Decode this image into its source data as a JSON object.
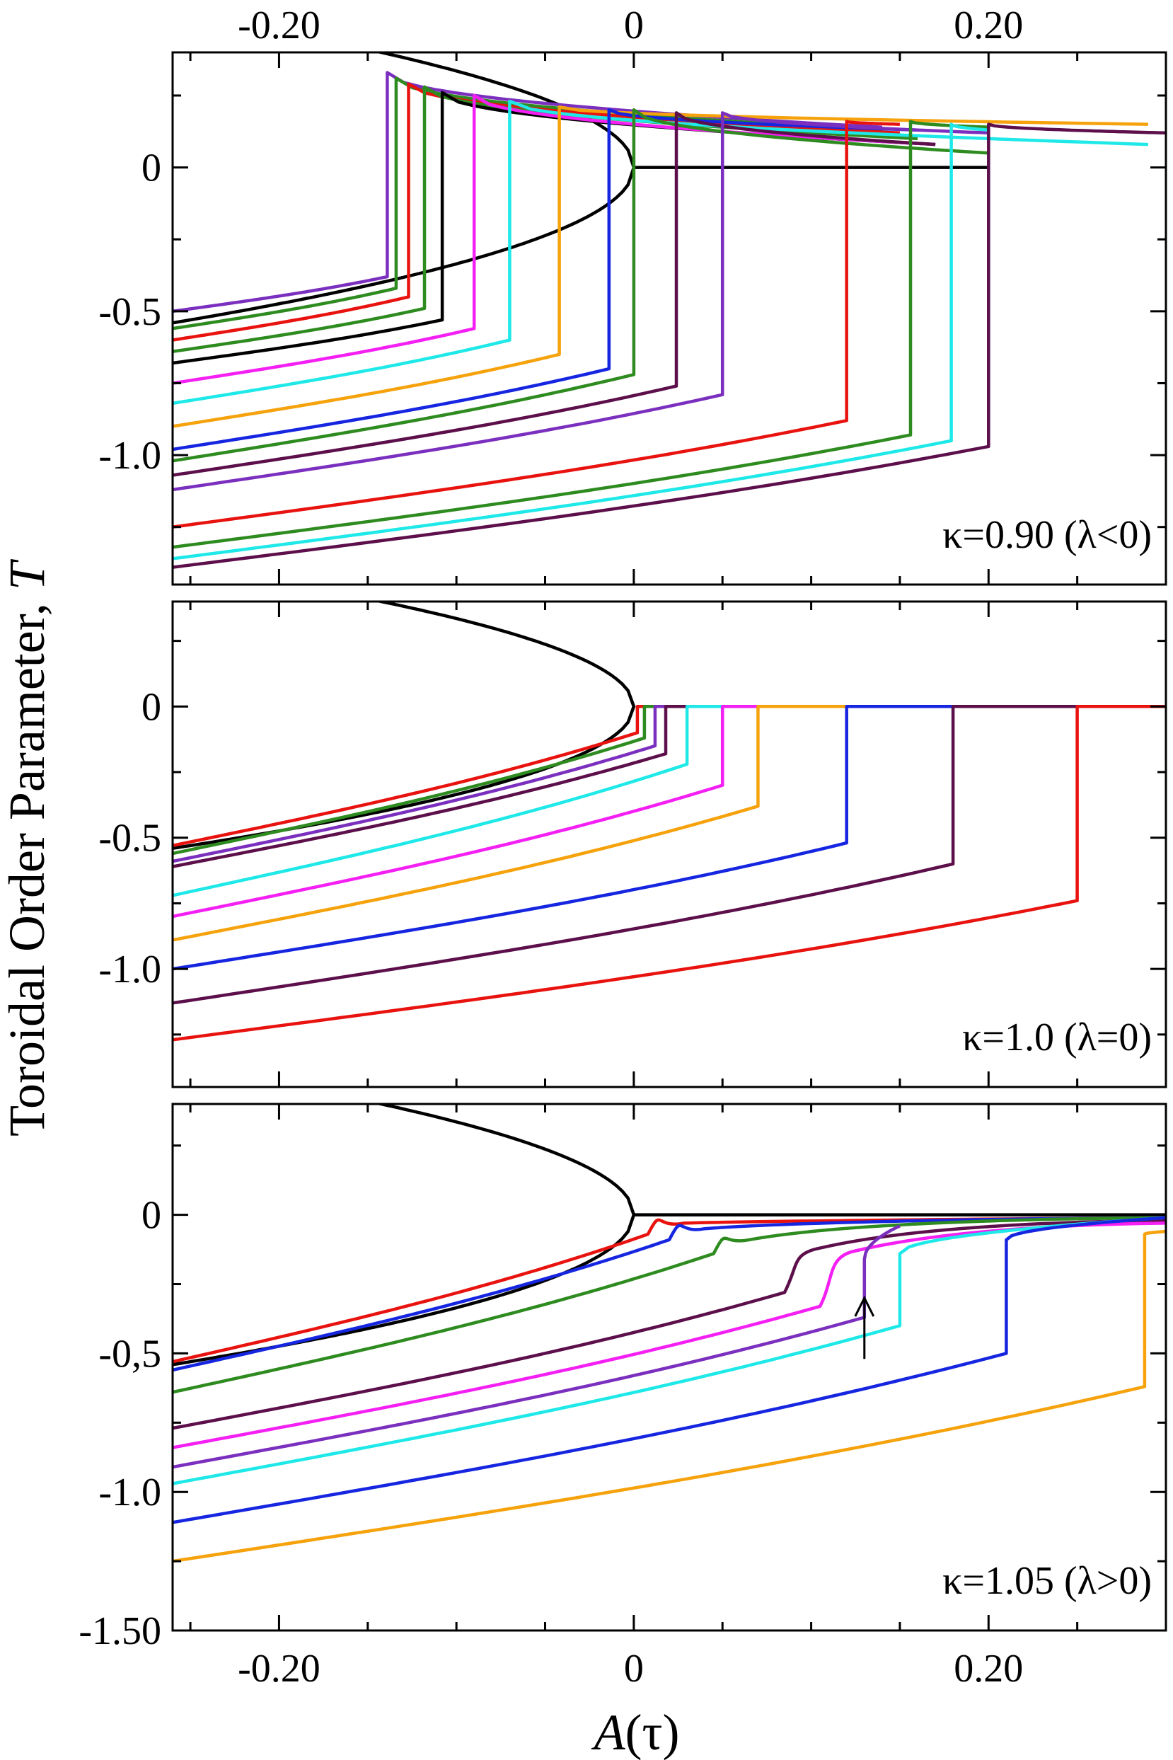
{
  "figure": {
    "ylabel_prefix": "Toroidal Order Parameter, ",
    "ylabel_var": "T",
    "xlabel_var": "A",
    "xlabel_arg": "(τ)",
    "top_x_ticks": [
      {
        "value": -0.2,
        "label": "-0.20"
      },
      {
        "value": 0,
        "label": "0"
      },
      {
        "value": 0.2,
        "label": "0.20"
      }
    ],
    "bottom_x_ticks": [
      {
        "value": -0.2,
        "label": "-0.20"
      },
      {
        "value": 0,
        "label": "0"
      },
      {
        "value": 0.2,
        "label": "0.20"
      }
    ]
  },
  "chart_data": [
    {
      "type": "line",
      "panel": "top",
      "label": "κ=0.90 (λ<0)",
      "xlim": [
        -0.26,
        0.3
      ],
      "ylim": [
        -1.45,
        0.4
      ],
      "y_ticks": [
        {
          "value": 0,
          "label": "0"
        },
        {
          "value": -0.5,
          "label": "-0.5"
        },
        {
          "value": -1.0,
          "label": "-1.0"
        }
      ],
      "reference_curve": {
        "color": "#000000",
        "apex": 0.0,
        "top_coef": 1.06,
        "bottom_coef": 1.06,
        "x_start": -0.26,
        "x_end": 0.2
      },
      "series": [
        {
          "color": "#7b2fbe",
          "xs": -0.139,
          "low_start": -0.5,
          "low_jump": -0.38,
          "high_jump": 0.33,
          "high_end": 0.14,
          "x_end": 0.14
        },
        {
          "color": "#2e8b1f",
          "xs": -0.134,
          "low_start": -0.56,
          "low_jump": -0.42,
          "high_jump": 0.31,
          "high_end": 0.13,
          "x_end": 0.14
        },
        {
          "color": "#e8130f",
          "xs": -0.127,
          "low_start": -0.6,
          "low_jump": -0.45,
          "high_jump": 0.29,
          "high_end": 0.12,
          "x_end": 0.15
        },
        {
          "color": "#2e8b1f",
          "xs": -0.118,
          "low_start": -0.64,
          "low_jump": -0.49,
          "high_jump": 0.28,
          "high_end": 0.1,
          "x_end": 0.16
        },
        {
          "color": "#000000",
          "xs": -0.108,
          "low_start": -0.68,
          "low_jump": -0.53,
          "high_jump": 0.26,
          "high_end": 0.08,
          "x_end": 0.17
        },
        {
          "color": "#f41ff3",
          "xs": -0.09,
          "low_start": -0.75,
          "low_jump": -0.56,
          "high_jump": 0.25,
          "high_end": 0.08,
          "x_end": 0.17
        },
        {
          "color": "#1fe8e8",
          "xs": -0.07,
          "low_start": -0.82,
          "low_jump": -0.6,
          "high_jump": 0.23,
          "high_end": 0.08,
          "x_end": 0.29
        },
        {
          "color": "#f5a20c",
          "xs": -0.042,
          "low_start": -0.9,
          "low_jump": -0.65,
          "high_jump": 0.21,
          "high_end": 0.15,
          "x_end": 0.29
        },
        {
          "color": "#1626e0",
          "xs": -0.014,
          "low_start": -0.98,
          "low_jump": -0.7,
          "high_jump": 0.2,
          "high_end": 0.13,
          "x_end": 0.16
        },
        {
          "color": "#2e8b1f",
          "xs": 0.0,
          "low_start": -1.02,
          "low_jump": -0.72,
          "high_jump": 0.2,
          "high_end": 0.05,
          "x_end": 0.2
        },
        {
          "color": "#5c0f4a",
          "xs": 0.024,
          "low_start": -1.07,
          "low_jump": -0.76,
          "high_jump": 0.19,
          "high_end": 0.08,
          "x_end": 0.17
        },
        {
          "color": "#7b2fbe",
          "xs": 0.05,
          "low_start": -1.12,
          "low_jump": -0.79,
          "high_jump": 0.19,
          "high_end": 0.12,
          "x_end": 0.2
        },
        {
          "color": "#e8130f",
          "xs": 0.12,
          "low_start": -1.25,
          "low_jump": -0.88,
          "high_jump": 0.16,
          "high_end": 0.15,
          "x_end": 0.15
        },
        {
          "color": "#2e8b1f",
          "xs": 0.156,
          "low_start": -1.32,
          "low_jump": -0.93,
          "high_jump": 0.16,
          "high_end": 0.14,
          "x_end": 0.2
        },
        {
          "color": "#1fe8e8",
          "xs": 0.179,
          "low_start": -1.36,
          "low_jump": -0.95,
          "high_jump": 0.15,
          "high_end": 0.13,
          "x_end": 0.2
        },
        {
          "color": "#5c0f4a",
          "xs": 0.2,
          "low_start": -1.39,
          "low_jump": -0.97,
          "high_jump": 0.15,
          "high_end": 0.12,
          "x_end": 0.3
        }
      ]
    },
    {
      "type": "line",
      "panel": "middle",
      "label": "κ=1.0 (λ=0)",
      "xlim": [
        -0.26,
        0.3
      ],
      "ylim": [
        -1.45,
        0.4
      ],
      "y_ticks": [
        {
          "value": 0,
          "label": "0"
        },
        {
          "value": -0.5,
          "label": "-0.5"
        },
        {
          "value": -1.0,
          "label": "-1.0"
        }
      ],
      "reference_curve": {
        "color": "#000000",
        "apex": 0.0,
        "top_coef": 1.06,
        "bottom_coef": 1.06,
        "x_start": -0.26,
        "x_end": 0.0
      },
      "series": [
        {
          "color": "#e8130f",
          "xs": 0.002,
          "low_start": -0.53,
          "low_jump": -0.1,
          "high_jump": 0.0,
          "high_end": 0.0,
          "x_end": 0.3
        },
        {
          "color": "#2e8b1f",
          "xs": 0.006,
          "low_start": -0.56,
          "low_jump": -0.12,
          "high_jump": 0.0,
          "high_end": 0.0,
          "x_end": 0.3
        },
        {
          "color": "#7b2fbe",
          "xs": 0.012,
          "low_start": -0.59,
          "low_jump": -0.15,
          "high_jump": 0.0,
          "high_end": 0.0,
          "x_end": 0.3
        },
        {
          "color": "#5c0f4a",
          "xs": 0.018,
          "low_start": -0.61,
          "low_jump": -0.18,
          "high_jump": 0.0,
          "high_end": 0.0,
          "x_end": 0.3
        },
        {
          "color": "#1fe8e8",
          "xs": 0.03,
          "low_start": -0.72,
          "low_jump": -0.22,
          "high_jump": 0.0,
          "high_end": 0.0,
          "x_end": 0.3
        },
        {
          "color": "#f41ff3",
          "xs": 0.05,
          "low_start": -0.8,
          "low_jump": -0.3,
          "high_jump": 0.0,
          "high_end": 0.0,
          "x_end": 0.3
        },
        {
          "color": "#f5a20c",
          "xs": 0.07,
          "low_start": -0.89,
          "low_jump": -0.38,
          "high_jump": 0.0,
          "high_end": 0.0,
          "x_end": 0.3
        },
        {
          "color": "#1626e0",
          "xs": 0.12,
          "low_start": -1.0,
          "low_jump": -0.52,
          "high_jump": 0.0,
          "high_end": 0.0,
          "x_end": 0.3
        },
        {
          "color": "#5c0f4a",
          "xs": 0.18,
          "low_start": -1.13,
          "low_jump": -0.6,
          "high_jump": 0.0,
          "high_end": 0.0,
          "x_end": 0.3
        },
        {
          "color": "#e8130f",
          "xs": 0.25,
          "low_start": -1.27,
          "low_jump": -0.74,
          "high_jump": 0.0,
          "high_end": 0.0,
          "x_end": 0.3
        }
      ]
    },
    {
      "type": "line",
      "panel": "bottom",
      "label": "κ=1.05 (λ>0)",
      "xlim": [
        -0.26,
        0.3
      ],
      "ylim": [
        -1.5,
        0.4
      ],
      "y_ticks": [
        {
          "value": 0,
          "label": "0"
        },
        {
          "value": -0.5,
          "label": "-0,5"
        },
        {
          "value": -1.0,
          "label": "-1.0"
        },
        {
          "value": -1.5,
          "label": "-1.50"
        }
      ],
      "reference_curve": {
        "color": "#000000",
        "apex": 0.0,
        "top_coef": 1.06,
        "bottom_coef": 1.06,
        "x_start": -0.26,
        "x_end": 0.3
      },
      "arrow": {
        "x": 0.13,
        "y_tail": -0.52,
        "y_head": -0.3
      },
      "series": [
        {
          "color": "#e8130f",
          "xs": 0.008,
          "low_start": -0.53,
          "low_jump": -0.07,
          "high_jump": -0.05,
          "high_end": -0.01,
          "x_end": 0.3,
          "smooth": true
        },
        {
          "color": "#1626e0",
          "xs": 0.02,
          "low_start": -0.56,
          "low_jump": -0.09,
          "high_jump": -0.07,
          "high_end": -0.01,
          "x_end": 0.3,
          "smooth": true
        },
        {
          "color": "#2e8b1f",
          "xs": 0.045,
          "low_start": -0.64,
          "low_jump": -0.14,
          "high_jump": -0.11,
          "high_end": -0.01,
          "x_end": 0.3,
          "smooth": true
        },
        {
          "color": "#5c0f4a",
          "xs": 0.085,
          "low_start": -0.77,
          "low_jump": -0.28,
          "high_jump": -0.14,
          "high_end": -0.02,
          "x_end": 0.3,
          "smooth": true
        },
        {
          "color": "#f41ff3",
          "xs": 0.105,
          "low_start": -0.84,
          "low_jump": -0.33,
          "high_jump": -0.15,
          "high_end": -0.03,
          "x_end": 0.3,
          "smooth": true
        },
        {
          "color": "#7b2fbe",
          "xs": 0.13,
          "low_start": -0.91,
          "low_jump": -0.37,
          "high_jump": -0.16,
          "high_end": -0.04,
          "x_end": 0.15
        },
        {
          "color": "#1fe8e8",
          "xs": 0.15,
          "low_start": -0.97,
          "low_jump": -0.4,
          "high_jump": -0.14,
          "high_end": -0.01,
          "x_end": 0.3
        },
        {
          "color": "#1626e0",
          "xs": 0.21,
          "low_start": -1.11,
          "low_jump": -0.5,
          "high_jump": -0.09,
          "high_end": -0.01,
          "x_end": 0.3
        },
        {
          "color": "#f5a20c",
          "xs": 0.288,
          "low_start": -1.25,
          "low_jump": -0.62,
          "high_jump": -0.07,
          "high_end": -0.06,
          "x_end": 0.3
        }
      ]
    }
  ]
}
